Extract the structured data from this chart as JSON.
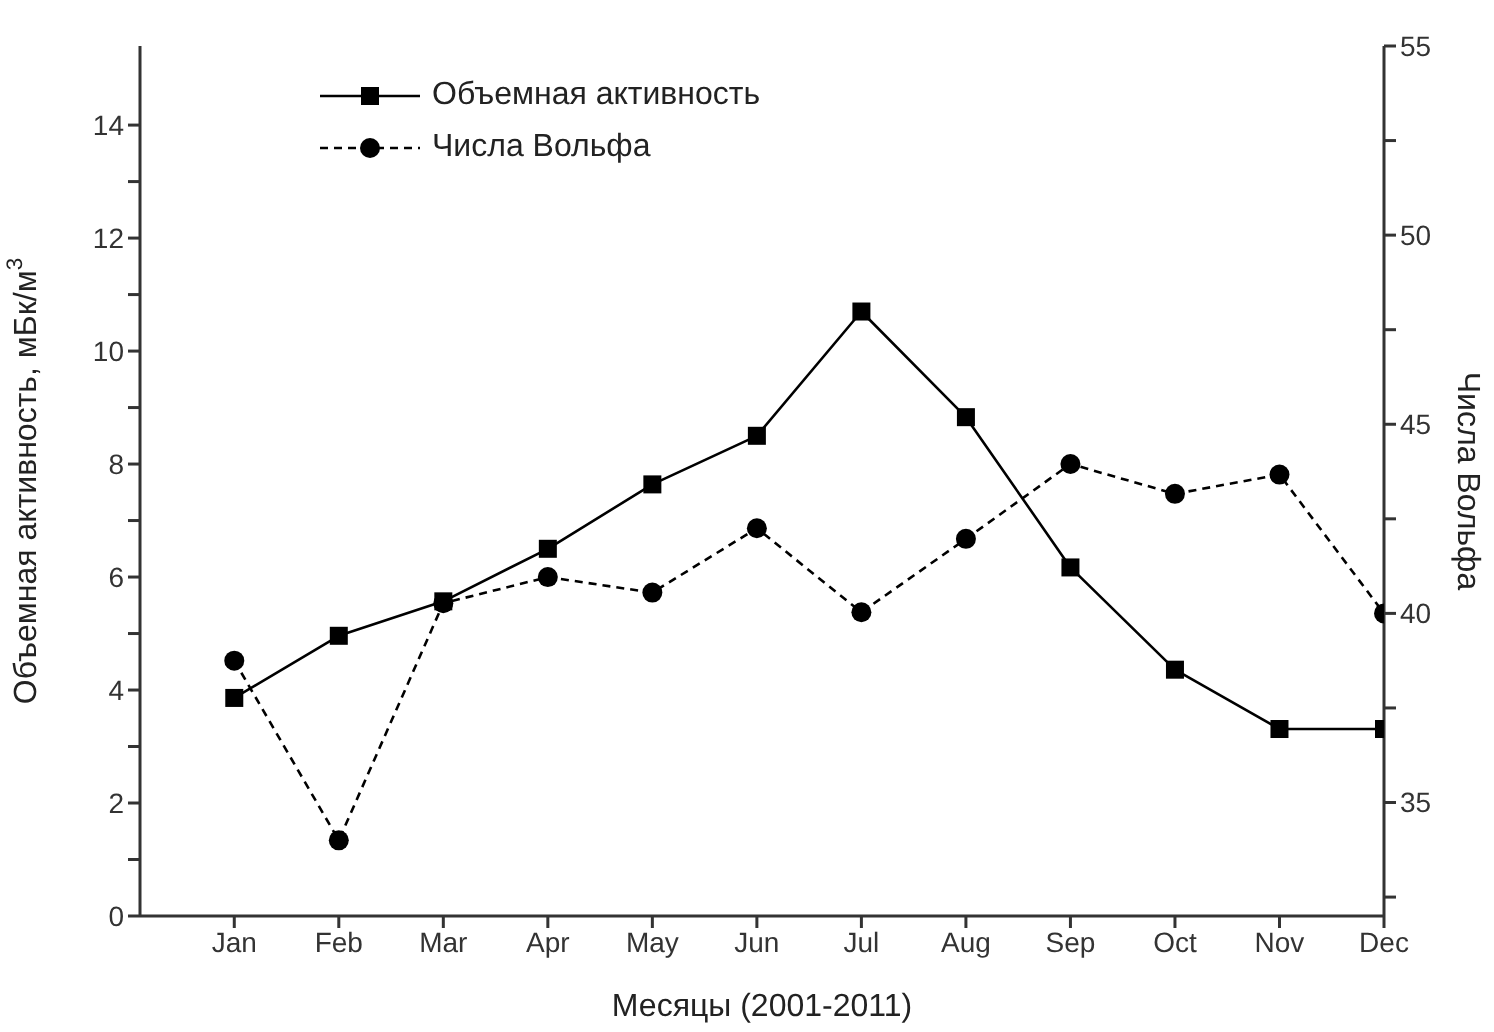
{
  "chart_data": {
    "type": "line",
    "xlabel": "Месяцы (2001-2011)",
    "ylabel": "Объемная активность, мБк/м$^{3}$",
    "y2label": "Числа Вольфа",
    "categories": [
      "Jan",
      "Feb",
      "Mar",
      "Apr",
      "May",
      "Jun",
      "Jul",
      "Aug",
      "Sep",
      "Oct",
      "Nov",
      "Dec"
    ],
    "series": [
      {
        "name": "Объемная активность",
        "color": "#000000",
        "marker": "square",
        "line_style": "solid",
        "values": [
          3.86,
          4.96,
          5.57,
          6.5,
          7.64,
          8.5,
          10.7,
          8.83,
          6.17,
          4.36,
          3.31,
          3.31
        ]
      },
      {
        "name": "Числа Вольфа",
        "color": "#000000",
        "marker": "circle",
        "line_style": "dashed",
        "axis": "y2",
        "values": [
          38.75,
          34.0,
          40.27,
          40.96,
          40.55,
          42.25,
          40.03,
          41.97,
          43.95,
          43.16,
          43.67,
          40.0
        ]
      }
    ],
    "ylim": [
      0,
      15.4
    ],
    "yticks": [
      0,
      {
        "value": 1,
        "label": null
      },
      2,
      {
        "value": 3,
        "label": null
      },
      4,
      {
        "value": 5,
        "label": null
      },
      6,
      {
        "value": 7,
        "label": null
      },
      8,
      {
        "value": 9,
        "label": null
      },
      10,
      {
        "value": 11,
        "label": null
      },
      12,
      {
        "value": 13,
        "label": null
      },
      14
    ],
    "y2lim": [
      32,
      55
    ],
    "y2ticks": [
      {
        "value": 32.5,
        "label": null
      },
      35,
      {
        "value": 37.5,
        "label": null
      },
      40,
      {
        "value": 42.5,
        "label": null
      },
      45,
      {
        "value": 47.5,
        "label": null
      },
      50,
      {
        "value": 52.5,
        "label": null
      },
      55
    ],
    "legend": "top left",
    "grid": false
  }
}
